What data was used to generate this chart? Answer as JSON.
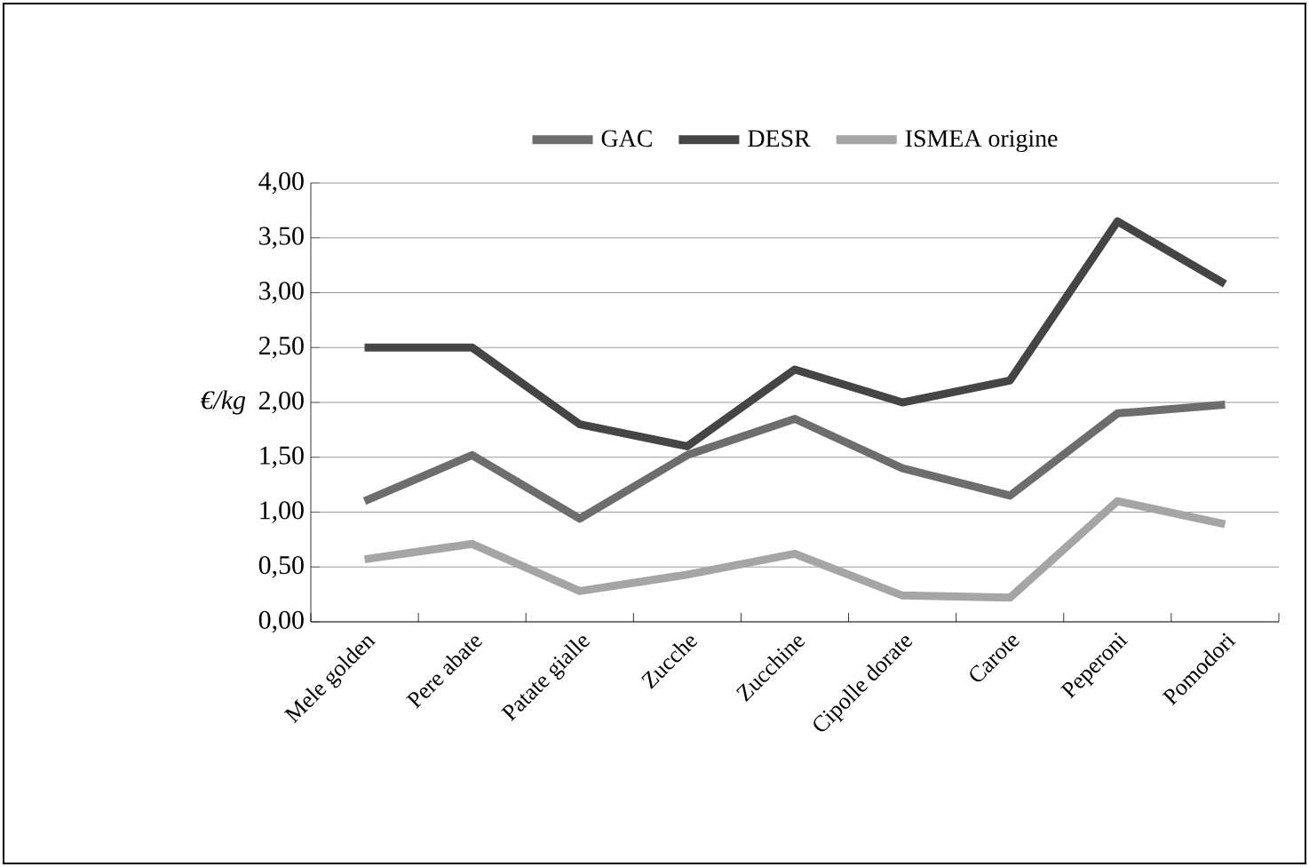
{
  "chart_data": {
    "type": "line",
    "ylabel": "€/kg",
    "categories": [
      "Mele golden",
      "Pere abate",
      "Patate gialle",
      "Zucche",
      "Zucchine",
      "Cipolle dorate",
      "Carote",
      "Peperoni",
      "Pomodori"
    ],
    "series": [
      {
        "name": "GAC",
        "color": "#6d6d6d",
        "values": [
          1.1,
          1.52,
          0.94,
          1.52,
          1.85,
          1.4,
          1.15,
          1.9,
          1.98
        ]
      },
      {
        "name": "DESR",
        "color": "#454545",
        "values": [
          2.5,
          2.5,
          1.8,
          1.6,
          2.3,
          2.0,
          2.2,
          3.65,
          3.08
        ]
      },
      {
        "name": "ISMEA origine",
        "color": "#a5a5a5",
        "values": [
          0.57,
          0.71,
          0.28,
          0.43,
          0.62,
          0.24,
          0.22,
          1.1,
          0.89
        ]
      }
    ],
    "ylim": [
      0,
      4
    ],
    "yticks": [
      {
        "value": 0,
        "label": "0,00"
      },
      {
        "value": 0.5,
        "label": "0,50"
      },
      {
        "value": 1,
        "label": "1,00"
      },
      {
        "value": 1.5,
        "label": "1,50"
      },
      {
        "value": 2,
        "label": "2,00"
      },
      {
        "value": 2.5,
        "label": "2,50"
      },
      {
        "value": 3,
        "label": "3,00"
      },
      {
        "value": 3.5,
        "label": "3,50"
      },
      {
        "value": 4,
        "label": "4,00"
      }
    ],
    "grid": "y",
    "legend": "top",
    "marker": "none",
    "line_style": "solid"
  }
}
